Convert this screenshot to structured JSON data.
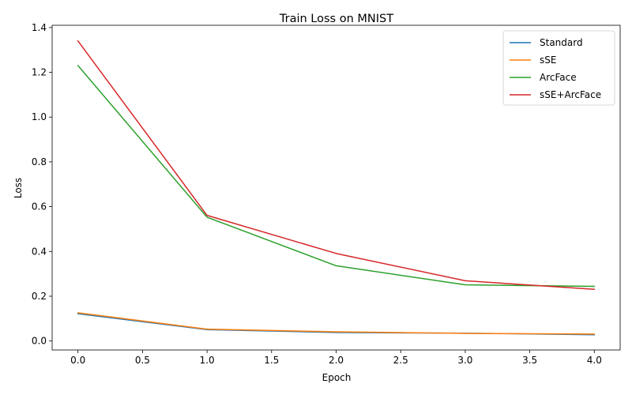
{
  "chart_data": {
    "type": "line",
    "title": "Train Loss on MNIST",
    "xlabel": "Epoch",
    "ylabel": "Loss",
    "x": [
      0,
      1,
      2,
      3,
      4
    ],
    "xlim": [
      -0.2,
      4.2
    ],
    "ylim": [
      -0.04,
      1.41
    ],
    "xticks": [
      "0.0",
      "0.5",
      "1.0",
      "1.5",
      "2.0",
      "2.5",
      "3.0",
      "3.5",
      "4.0"
    ],
    "yticks": [
      "0.0",
      "0.2",
      "0.4",
      "0.6",
      "0.8",
      "1.0",
      "1.2",
      "1.4"
    ],
    "grid": false,
    "legend_position": "top-right",
    "series": [
      {
        "name": "Standard",
        "color": "#1f77b4",
        "values": [
          0.122,
          0.051,
          0.038,
          0.035,
          0.028
        ]
      },
      {
        "name": "sSE",
        "color": "#ff7f0e",
        "values": [
          0.126,
          0.053,
          0.041,
          0.034,
          0.031
        ]
      },
      {
        "name": "ArcFace",
        "color": "#2ca02c",
        "values": [
          1.23,
          0.553,
          0.336,
          0.251,
          0.244
        ]
      },
      {
        "name": "sSE+ArcFace",
        "color": "#d62728",
        "values": [
          1.34,
          0.561,
          0.391,
          0.269,
          0.231
        ]
      }
    ]
  }
}
